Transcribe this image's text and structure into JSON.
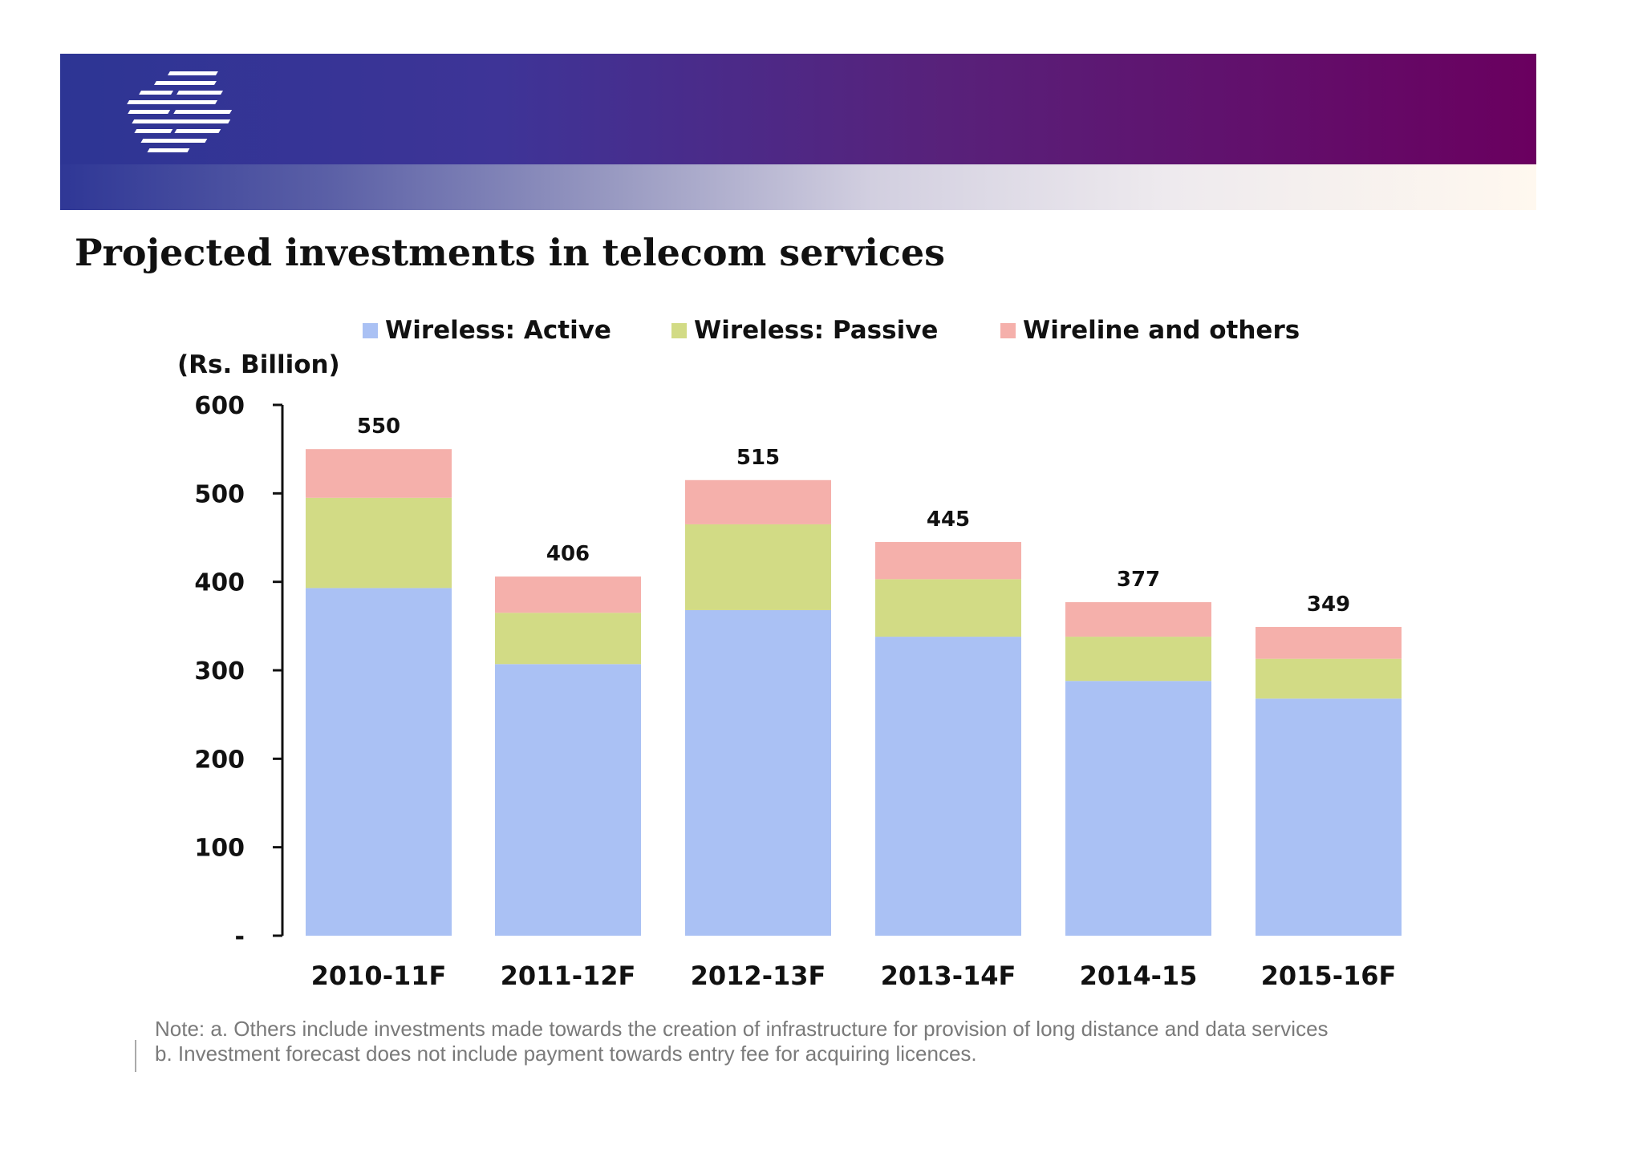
{
  "slide": {
    "title": "Projected investments in telecom services",
    "note_line1": "Note: a. Others include investments made towards the creation of infrastructure for provision of long distance and data services",
    "note_line2": "b.  Investment forecast does not include payment towards entry fee for acquiring licences."
  },
  "colors": {
    "banner_start": "#2d3594",
    "banner_end": "#6a005f"
  },
  "chart_data": {
    "type": "bar",
    "stacked": true,
    "title": "",
    "unit_label": "(Rs. Billion)",
    "xlabel": "",
    "ylabel": "",
    "ylim": [
      0,
      600
    ],
    "yticks": [
      0,
      100,
      200,
      300,
      400,
      500,
      600
    ],
    "ytick_labels": [
      "-",
      "100",
      "200",
      "300",
      "400",
      "500",
      "600"
    ],
    "grid": false,
    "legend_position": "top",
    "categories": [
      "2010-11F",
      "2011-12F",
      "2012-13F",
      "2013-14F",
      "2014-15",
      "2015-16F"
    ],
    "series": [
      {
        "name": "Wireless: Active",
        "color": "#aac1f4",
        "values": [
          393,
          307,
          368,
          338,
          288,
          268
        ]
      },
      {
        "name": "Wireless: Passive",
        "color": "#d2db85",
        "values": [
          102,
          58,
          97,
          65,
          50,
          45
        ]
      },
      {
        "name": "Wireline and others",
        "color": "#f5b0ab",
        "values": [
          55,
          41,
          50,
          42,
          39,
          36
        ]
      }
    ],
    "totals": [
      550,
      406,
      515,
      445,
      377,
      349
    ]
  }
}
